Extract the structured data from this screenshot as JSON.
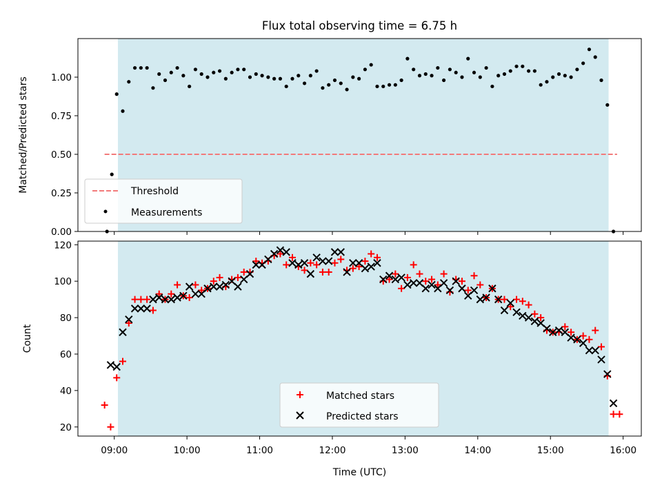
{
  "chart_data": [
    {
      "type": "scatter",
      "title": "Flux total observing time = 6.75 h",
      "xlabel": "",
      "ylabel": "Matched/Predicted stars",
      "xlim": [
        "08:30",
        "16:15"
      ],
      "ylim": [
        0,
        1.25
      ],
      "yticks": [
        "0.00",
        "0.25",
        "0.50",
        "0.75",
        "1.00"
      ],
      "shaded_interval": [
        "09:03",
        "15:48"
      ],
      "shade_color": "#d3eaf0",
      "legend_position": "lower-left",
      "threshold": {
        "name": "Threshold",
        "value": 0.5,
        "x_range": [
          "08:52",
          "15:55"
        ],
        "color": "#f27a7a",
        "style": "dashed"
      },
      "series": [
        {
          "name": "Measurements",
          "marker": "dot",
          "color": "#000000",
          "points": [
            [
              "08:54",
              0.0
            ],
            [
              "08:58",
              0.37
            ],
            [
              "09:02",
              0.89
            ],
            [
              "09:07",
              0.78
            ],
            [
              "09:12",
              0.97
            ],
            [
              "09:17",
              1.06
            ],
            [
              "09:22",
              1.06
            ],
            [
              "09:27",
              1.06
            ],
            [
              "09:32",
              0.93
            ],
            [
              "09:37",
              1.02
            ],
            [
              "09:42",
              0.98
            ],
            [
              "09:47",
              1.03
            ],
            [
              "09:52",
              1.06
            ],
            [
              "09:57",
              1.01
            ],
            [
              "10:02",
              0.94
            ],
            [
              "10:07",
              1.05
            ],
            [
              "10:12",
              1.02
            ],
            [
              "10:17",
              1.0
            ],
            [
              "10:22",
              1.03
            ],
            [
              "10:27",
              1.04
            ],
            [
              "10:32",
              0.99
            ],
            [
              "10:37",
              1.03
            ],
            [
              "10:42",
              1.05
            ],
            [
              "10:47",
              1.05
            ],
            [
              "10:52",
              1.0
            ],
            [
              "10:57",
              1.02
            ],
            [
              "11:02",
              1.01
            ],
            [
              "11:07",
              1.0
            ],
            [
              "11:12",
              0.99
            ],
            [
              "11:17",
              0.99
            ],
            [
              "11:22",
              0.94
            ],
            [
              "11:27",
              0.99
            ],
            [
              "11:32",
              1.01
            ],
            [
              "11:37",
              0.96
            ],
            [
              "11:42",
              1.01
            ],
            [
              "11:47",
              1.04
            ],
            [
              "11:52",
              0.93
            ],
            [
              "11:57",
              0.95
            ],
            [
              "12:02",
              0.98
            ],
            [
              "12:07",
              0.96
            ],
            [
              "12:12",
              0.92
            ],
            [
              "12:17",
              1.0
            ],
            [
              "12:22",
              0.99
            ],
            [
              "12:27",
              1.05
            ],
            [
              "12:32",
              1.08
            ],
            [
              "12:37",
              0.94
            ],
            [
              "12:42",
              0.94
            ],
            [
              "12:47",
              0.95
            ],
            [
              "12:52",
              0.95
            ],
            [
              "12:57",
              0.98
            ],
            [
              "13:02",
              1.12
            ],
            [
              "13:07",
              1.05
            ],
            [
              "13:12",
              1.01
            ],
            [
              "13:17",
              1.02
            ],
            [
              "13:22",
              1.01
            ],
            [
              "13:27",
              1.06
            ],
            [
              "13:32",
              0.98
            ],
            [
              "13:37",
              1.05
            ],
            [
              "13:42",
              1.03
            ],
            [
              "13:47",
              1.0
            ],
            [
              "13:52",
              1.12
            ],
            [
              "13:57",
              1.03
            ],
            [
              "14:02",
              1.0
            ],
            [
              "14:07",
              1.06
            ],
            [
              "14:12",
              0.94
            ],
            [
              "14:17",
              1.01
            ],
            [
              "14:22",
              1.02
            ],
            [
              "14:27",
              1.04
            ],
            [
              "14:32",
              1.07
            ],
            [
              "14:37",
              1.07
            ],
            [
              "14:42",
              1.04
            ],
            [
              "14:47",
              1.04
            ],
            [
              "14:52",
              0.95
            ],
            [
              "14:57",
              0.97
            ],
            [
              "15:02",
              1.0
            ],
            [
              "15:07",
              1.02
            ],
            [
              "15:12",
              1.01
            ],
            [
              "15:17",
              1.0
            ],
            [
              "15:22",
              1.05
            ],
            [
              "15:27",
              1.09
            ],
            [
              "15:32",
              1.18
            ],
            [
              "15:37",
              1.13
            ],
            [
              "15:42",
              0.98
            ],
            [
              "15:47",
              0.82
            ],
            [
              "15:52",
              0.0
            ]
          ]
        }
      ]
    },
    {
      "type": "scatter",
      "title": "",
      "xlabel": "Time (UTC)",
      "ylabel": "Count",
      "xlim": [
        "08:30",
        "16:15"
      ],
      "ylim": [
        15,
        122
      ],
      "xticks": [
        "09:00",
        "10:00",
        "11:00",
        "12:00",
        "13:00",
        "14:00",
        "15:00",
        "16:00"
      ],
      "yticks": [
        "20",
        "40",
        "60",
        "80",
        "100",
        "120"
      ],
      "shaded_interval": [
        "09:03",
        "15:48"
      ],
      "shade_color": "#d3eaf0",
      "legend_position": "lower-center",
      "series": [
        {
          "name": "Matched stars",
          "marker": "plus",
          "color": "#ff0000",
          "points": [
            [
              "08:52",
              32
            ],
            [
              "08:57",
              20
            ],
            [
              "09:02",
              47
            ],
            [
              "09:07",
              56
            ],
            [
              "09:12",
              77
            ],
            [
              "09:17",
              90
            ],
            [
              "09:22",
              90
            ],
            [
              "09:27",
              90
            ],
            [
              "09:32",
              84
            ],
            [
              "09:37",
              93
            ],
            [
              "09:42",
              90
            ],
            [
              "09:47",
              93
            ],
            [
              "09:52",
              98
            ],
            [
              "09:57",
              92
            ],
            [
              "10:02",
              91
            ],
            [
              "10:07",
              98
            ],
            [
              "10:12",
              95
            ],
            [
              "10:17",
              96
            ],
            [
              "10:22",
              100
            ],
            [
              "10:27",
              102
            ],
            [
              "10:32",
              97
            ],
            [
              "10:37",
              101
            ],
            [
              "10:42",
              102
            ],
            [
              "10:47",
              105
            ],
            [
              "10:52",
              105
            ],
            [
              "10:57",
              111
            ],
            [
              "11:02",
              110
            ],
            [
              "11:07",
              111
            ],
            [
              "11:12",
              114
            ],
            [
              "11:17",
              115
            ],
            [
              "11:22",
              109
            ],
            [
              "11:27",
              113
            ],
            [
              "11:32",
              108
            ],
            [
              "11:37",
              106
            ],
            [
              "11:42",
              110
            ],
            [
              "11:47",
              109
            ],
            [
              "11:52",
              105
            ],
            [
              "11:57",
              105
            ],
            [
              "12:02",
              110
            ],
            [
              "12:07",
              112
            ],
            [
              "12:12",
              106
            ],
            [
              "12:17",
              107
            ],
            [
              "12:22",
              108
            ],
            [
              "12:27",
              111
            ],
            [
              "12:32",
              115
            ],
            [
              "12:37",
              113
            ],
            [
              "12:42",
              100
            ],
            [
              "12:47",
              101
            ],
            [
              "12:52",
              104
            ],
            [
              "12:57",
              96
            ],
            [
              "13:02",
              102
            ],
            [
              "13:07",
              109
            ],
            [
              "13:12",
              104
            ],
            [
              "13:17",
              100
            ],
            [
              "13:22",
              101
            ],
            [
              "13:27",
              98
            ],
            [
              "13:32",
              104
            ],
            [
              "13:37",
              94
            ],
            [
              "13:42",
              101
            ],
            [
              "13:47",
              100
            ],
            [
              "13:52",
              95
            ],
            [
              "13:57",
              103
            ],
            [
              "14:02",
              98
            ],
            [
              "14:07",
              91
            ],
            [
              "14:12",
              96
            ],
            [
              "14:17",
              90
            ],
            [
              "14:22",
              90
            ],
            [
              "14:27",
              86
            ],
            [
              "14:32",
              90
            ],
            [
              "14:37",
              89
            ],
            [
              "14:42",
              87
            ],
            [
              "14:47",
              82
            ],
            [
              "14:52",
              80
            ],
            [
              "14:57",
              73
            ],
            [
              "15:02",
              72
            ],
            [
              "15:07",
              72
            ],
            [
              "15:12",
              75
            ],
            [
              "15:17",
              72
            ],
            [
              "15:22",
              68
            ],
            [
              "15:27",
              70
            ],
            [
              "15:32",
              68
            ],
            [
              "15:37",
              73
            ],
            [
              "15:42",
              64
            ],
            [
              "15:47",
              48
            ],
            [
              "15:52",
              27
            ],
            [
              "15:57",
              27
            ]
          ]
        },
        {
          "name": "Predicted stars",
          "marker": "x",
          "color": "#000000",
          "points": [
            [
              "08:57",
              54
            ],
            [
              "09:02",
              53
            ],
            [
              "09:07",
              72
            ],
            [
              "09:12",
              79
            ],
            [
              "09:17",
              85
            ],
            [
              "09:22",
              85
            ],
            [
              "09:27",
              85
            ],
            [
              "09:32",
              90
            ],
            [
              "09:37",
              91
            ],
            [
              "09:42",
              90
            ],
            [
              "09:47",
              90
            ],
            [
              "09:52",
              91
            ],
            [
              "09:57",
              92
            ],
            [
              "10:02",
              97
            ],
            [
              "10:07",
              93
            ],
            [
              "10:12",
              93
            ],
            [
              "10:17",
              96
            ],
            [
              "10:22",
              97
            ],
            [
              "10:27",
              97
            ],
            [
              "10:32",
              98
            ],
            [
              "10:37",
              100
            ],
            [
              "10:42",
              97
            ],
            [
              "10:47",
              101
            ],
            [
              "10:52",
              104
            ],
            [
              "10:57",
              109
            ],
            [
              "11:02",
              109
            ],
            [
              "11:07",
              112
            ],
            [
              "11:12",
              115
            ],
            [
              "11:17",
              117
            ],
            [
              "11:22",
              116
            ],
            [
              "11:27",
              110
            ],
            [
              "11:32",
              109
            ],
            [
              "11:37",
              110
            ],
            [
              "11:42",
              104
            ],
            [
              "11:47",
              113
            ],
            [
              "11:52",
              111
            ],
            [
              "11:57",
              111
            ],
            [
              "12:02",
              116
            ],
            [
              "12:07",
              116
            ],
            [
              "12:12",
              105
            ],
            [
              "12:17",
              110
            ],
            [
              "12:22",
              110
            ],
            [
              "12:27",
              107
            ],
            [
              "12:32",
              108
            ],
            [
              "12:37",
              110
            ],
            [
              "12:42",
              101
            ],
            [
              "12:47",
              103
            ],
            [
              "12:52",
              101
            ],
            [
              "12:57",
              102
            ],
            [
              "13:02",
              98
            ],
            [
              "13:07",
              99
            ],
            [
              "13:12",
              99
            ],
            [
              "13:17",
              96
            ],
            [
              "13:22",
              98
            ],
            [
              "13:27",
              96
            ],
            [
              "13:32",
              99
            ],
            [
              "13:37",
              95
            ],
            [
              "13:42",
              100
            ],
            [
              "13:47",
              96
            ],
            [
              "13:52",
              92
            ],
            [
              "13:57",
              95
            ],
            [
              "14:02",
              90
            ],
            [
              "14:07",
              91
            ],
            [
              "14:12",
              96
            ],
            [
              "14:17",
              90
            ],
            [
              "14:22",
              84
            ],
            [
              "14:27",
              88
            ],
            [
              "14:32",
              83
            ],
            [
              "14:37",
              81
            ],
            [
              "14:42",
              80
            ],
            [
              "14:47",
              78
            ],
            [
              "14:52",
              77
            ],
            [
              "14:57",
              74
            ],
            [
              "15:02",
              72
            ],
            [
              "15:07",
              73
            ],
            [
              "15:12",
              72
            ],
            [
              "15:17",
              69
            ],
            [
              "15:22",
              68
            ],
            [
              "15:27",
              66
            ],
            [
              "15:32",
              62
            ],
            [
              "15:37",
              62
            ],
            [
              "15:42",
              57
            ],
            [
              "15:47",
              49
            ],
            [
              "15:52",
              33
            ]
          ]
        }
      ]
    }
  ]
}
